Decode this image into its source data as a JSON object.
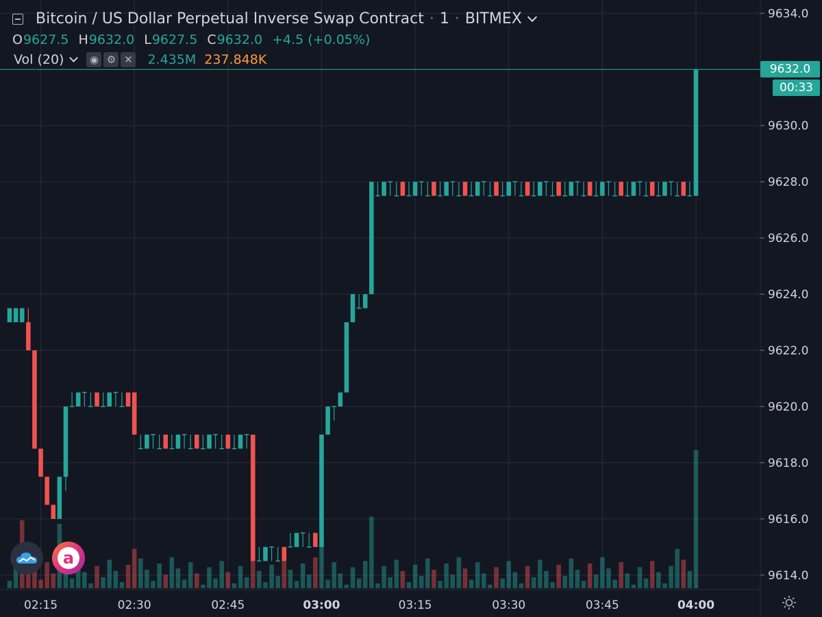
{
  "header": {
    "title": "Bitcoin / US Dollar Perpetual Inverse Swap Contract",
    "interval": "1",
    "exchange": "BITMEX",
    "ohlc": {
      "o_label": "O",
      "o_value": "9627.5",
      "h_label": "H",
      "h_value": "9632.0",
      "l_label": "L",
      "l_value": "9627.5",
      "c_label": "C",
      "c_value": "9632.0",
      "change": "+4.5 (+0.05%)"
    }
  },
  "volume_indicator": {
    "label": "Vol (20)",
    "value": "2.435M",
    "ma_value": "237.848K"
  },
  "price_axis": {
    "last_price": "9632.0",
    "countdown": "00:33"
  },
  "colors": {
    "background": "#131722",
    "up": "#26a69a",
    "down": "#ef5350",
    "grid": "#2a2e39",
    "text": "#d1d4dc",
    "ma": "#ff9a3c"
  },
  "logos": [
    "cloud-logo-icon",
    "letter-a-logo-icon"
  ],
  "chart_data": {
    "type": "candlestick",
    "symbol": "Bitcoin / US Dollar Perpetual Inverse Swap Contract",
    "interval_minutes": 1,
    "y_ticks": [
      "9614.0",
      "9616.0",
      "9618.0",
      "9620.0",
      "9622.0",
      "9624.0",
      "9626.0",
      "9628.0",
      "9630.0",
      "9632.0",
      "9634.0"
    ],
    "ylim": [
      9612.8,
      9634.3
    ],
    "x_ticks": [
      {
        "label": "02:15",
        "bold": false
      },
      {
        "label": "02:30",
        "bold": false
      },
      {
        "label": "02:45",
        "bold": false
      },
      {
        "label": "03:00",
        "bold": true
      },
      {
        "label": "03:15",
        "bold": false
      },
      {
        "label": "03:30",
        "bold": false
      },
      {
        "label": "03:45",
        "bold": false
      },
      {
        "label": "04:00",
        "bold": true
      }
    ],
    "x_start": "02:10",
    "x_end": "04:00",
    "legend": "top-left",
    "grid": true,
    "candle_groups": [
      {
        "from": "02:10",
        "to": "02:12",
        "o": 9623.5,
        "h": 9623.5,
        "l": 9623.0,
        "c": 9623.5
      },
      {
        "from": "02:13",
        "to": "02:13",
        "o": 9623.0,
        "h": 9623.5,
        "l": 9622.0,
        "c": 9622.0
      },
      {
        "from": "02:14",
        "to": "02:14",
        "o": 9622.0,
        "h": 9622.0,
        "l": 9618.5,
        "c": 9618.5
      },
      {
        "from": "02:15",
        "to": "02:15",
        "o": 9618.5,
        "h": 9618.5,
        "l": 9617.5,
        "c": 9617.5
      },
      {
        "from": "02:16",
        "to": "02:16",
        "o": 9617.5,
        "h": 9617.5,
        "l": 9616.5,
        "c": 9616.5
      },
      {
        "from": "02:17",
        "to": "02:17",
        "o": 9616.5,
        "h": 9616.5,
        "l": 9616.0,
        "c": 9616.0
      },
      {
        "from": "02:18",
        "to": "02:18",
        "o": 9616.0,
        "h": 9617.5,
        "l": 9616.0,
        "c": 9617.5
      },
      {
        "from": "02:19",
        "to": "02:19",
        "o": 9617.5,
        "h": 9620.0,
        "l": 9617.0,
        "c": 9620.0
      },
      {
        "from": "02:20",
        "to": "02:29",
        "o": 9620.5,
        "h": 9620.5,
        "l": 9620.0,
        "c": 9620.0
      },
      {
        "from": "02:30",
        "to": "02:30",
        "o": 9620.5,
        "h": 9620.5,
        "l": 9619.0,
        "c": 9619.0
      },
      {
        "from": "02:31",
        "to": "02:48",
        "o": 9619.0,
        "h": 9619.0,
        "l": 9618.5,
        "c": 9618.5
      },
      {
        "from": "02:49",
        "to": "02:49",
        "o": 9619.0,
        "h": 9619.0,
        "l": 9614.5,
        "c": 9614.5
      },
      {
        "from": "02:50",
        "to": "02:54",
        "o": 9615.0,
        "h": 9615.0,
        "l": 9614.5,
        "c": 9615.0
      },
      {
        "from": "02:55",
        "to": "02:59",
        "o": 9615.0,
        "h": 9615.5,
        "l": 9615.0,
        "c": 9615.5
      },
      {
        "from": "03:00",
        "to": "03:00",
        "o": 9615.0,
        "h": 9619.0,
        "l": 9615.0,
        "c": 9619.0
      },
      {
        "from": "03:01",
        "to": "03:01",
        "o": 9619.0,
        "h": 9620.0,
        "l": 9619.0,
        "c": 9620.0
      },
      {
        "from": "03:02",
        "to": "03:02",
        "o": 9620.0,
        "h": 9620.0,
        "l": 9619.5,
        "c": 9620.0
      },
      {
        "from": "03:03",
        "to": "03:03",
        "o": 9620.0,
        "h": 9620.5,
        "l": 9620.0,
        "c": 9620.5
      },
      {
        "from": "03:04",
        "to": "03:04",
        "o": 9620.5,
        "h": 9623.0,
        "l": 9620.5,
        "c": 9623.0
      },
      {
        "from": "03:05",
        "to": "03:05",
        "o": 9623.0,
        "h": 9624.0,
        "l": 9623.0,
        "c": 9624.0
      },
      {
        "from": "03:06",
        "to": "03:07",
        "o": 9624.0,
        "h": 9624.0,
        "l": 9623.5,
        "c": 9624.0
      },
      {
        "from": "03:08",
        "to": "03:08",
        "o": 9624.0,
        "h": 9628.0,
        "l": 9624.0,
        "c": 9628.0
      },
      {
        "from": "03:09",
        "to": "03:59",
        "o": 9628.0,
        "h": 9628.0,
        "l": 9627.5,
        "c": 9627.5
      },
      {
        "from": "04:00",
        "to": "04:00",
        "o": 9627.5,
        "h": 9632.0,
        "l": 9627.5,
        "c": 9632.0
      }
    ],
    "volume_spikes": [
      {
        "time": "02:12",
        "value": 0.95,
        "up": false
      },
      {
        "time": "02:18",
        "value": 0.9,
        "up": true
      },
      {
        "time": "02:30",
        "value": 0.55,
        "up": false
      },
      {
        "time": "02:49",
        "value": 0.65,
        "up": false
      },
      {
        "time": "03:00",
        "value": 0.65,
        "up": true
      },
      {
        "time": "03:08",
        "value": 1.0,
        "up": true
      },
      {
        "time": "03:57",
        "value": 0.55,
        "up": true
      },
      {
        "time": "04:00",
        "value": 1.93,
        "up": true
      }
    ]
  }
}
